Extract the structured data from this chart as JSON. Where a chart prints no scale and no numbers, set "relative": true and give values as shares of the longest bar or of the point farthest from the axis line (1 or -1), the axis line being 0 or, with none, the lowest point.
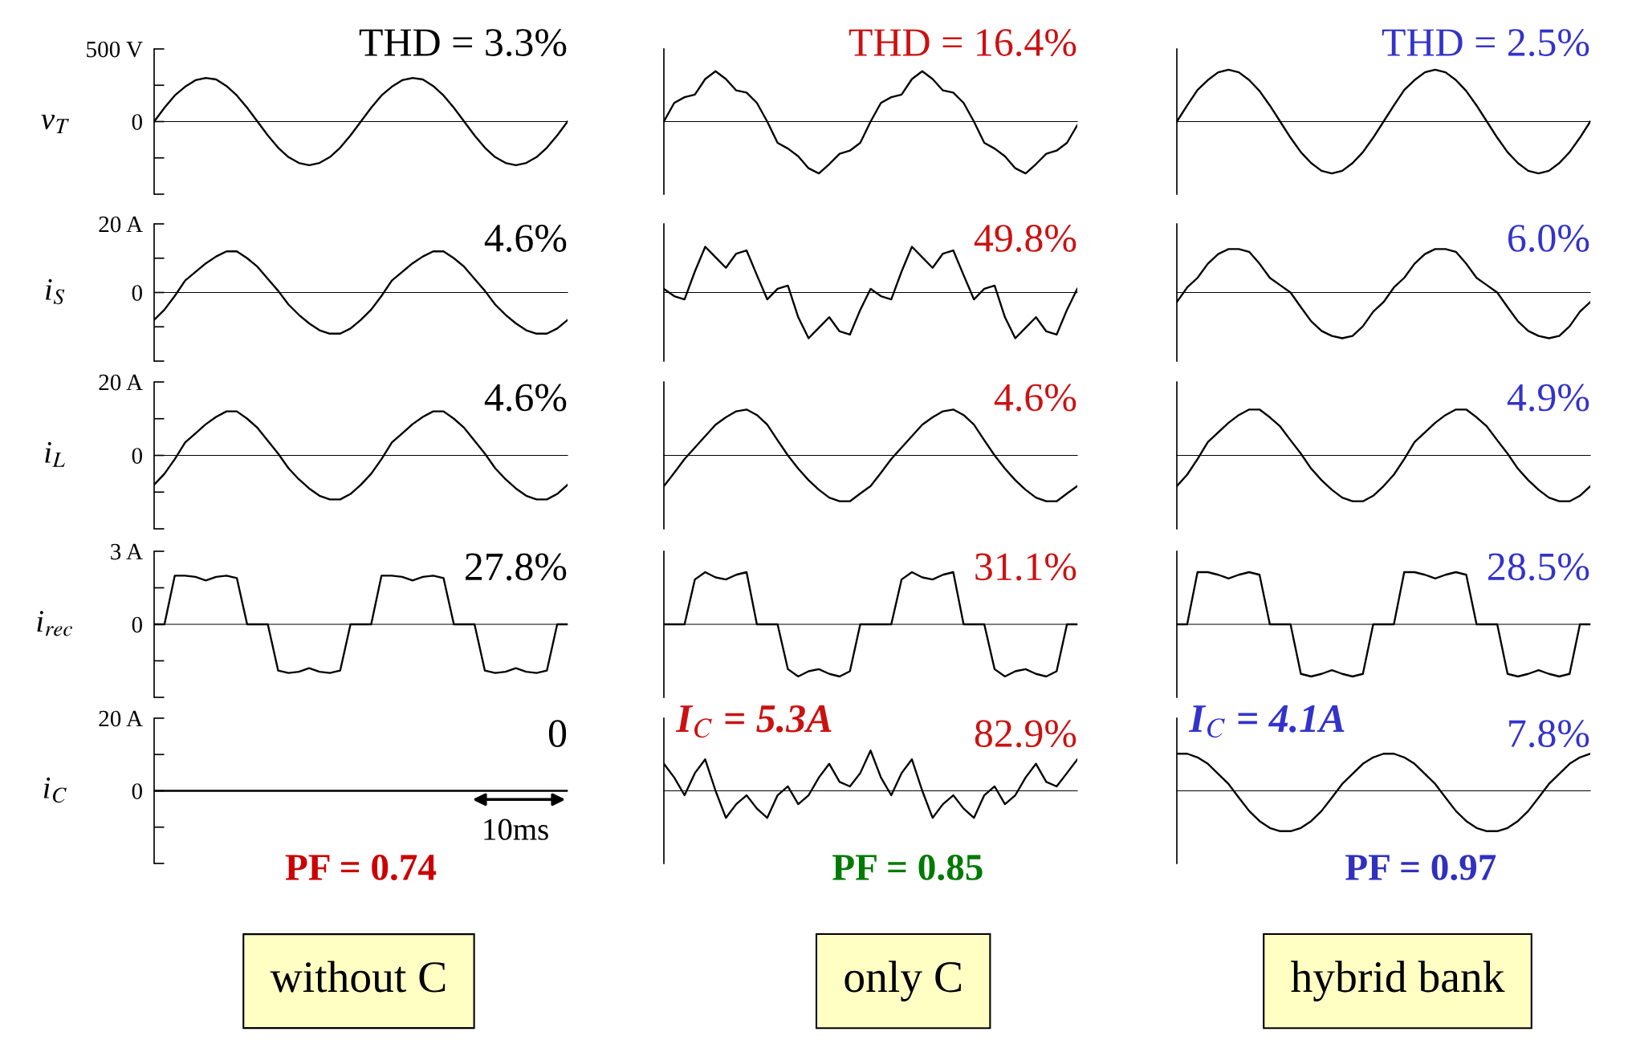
{
  "chart_data": [
    {
      "type": "line",
      "title": "THD = 3.3%",
      "ylabel": "v$_{T}$",
      "tick_labels": "y",
      "categories": [
        null,
        null,
        null,
        null,
        null,
        null,
        null,
        null,
        null,
        null,
        null,
        null,
        null,
        null,
        null,
        null,
        null,
        null,
        null,
        null,
        null,
        null,
        null,
        null,
        null,
        null,
        null,
        null,
        null,
        null,
        null,
        null,
        null,
        null,
        null,
        null,
        null,
        null,
        null,
        null,
        null
      ],
      "ylim": [
        -500,
        500
      ],
      "yticks": [
        {
          "value": 500,
          "label": "500 V"
        },
        {
          "value": 250,
          "label": null
        },
        0,
        {
          "value": -250,
          "label": null
        },
        {
          "value": -500,
          "label": null
        }
      ],
      "series": [
        {
          "color": "#000000",
          "values": [
            0,
            95,
            180,
            240,
            285,
            300,
            290,
            245,
            180,
            95,
            0,
            -95,
            -180,
            -245,
            -285,
            -300,
            -285,
            -245,
            -180,
            -95,
            0,
            95,
            180,
            240,
            285,
            300,
            290,
            245,
            180,
            95,
            0,
            -95,
            -180,
            -245,
            -285,
            -300,
            -285,
            -245,
            -180,
            -95,
            0
          ]
        }
      ]
    },
    {
      "type": "line",
      "title": "THD = 16.4%",
      "relative": true,
      "categories": [
        null,
        null,
        null,
        null,
        null,
        null,
        null,
        null,
        null,
        null,
        null,
        null,
        null,
        null,
        null,
        null,
        null,
        null,
        null,
        null,
        null,
        null,
        null,
        null,
        null,
        null,
        null,
        null,
        null,
        null,
        null,
        null,
        null,
        null,
        null,
        null,
        null,
        null,
        null,
        null,
        null
      ],
      "series": [
        {
          "color": "#000000",
          "values": [
            0,
            0.36,
            0.47,
            0.52,
            0.82,
            0.97,
            0.82,
            0.6,
            0.56,
            0.36,
            0,
            -0.41,
            -0.52,
            -0.67,
            -0.9,
            -1,
            -0.82,
            -0.62,
            -0.56,
            -0.41,
            0,
            0.36,
            0.47,
            0.52,
            0.82,
            0.97,
            0.82,
            0.6,
            0.56,
            0.36,
            0,
            -0.41,
            -0.52,
            -0.67,
            -0.9,
            -1,
            -0.82,
            -0.62,
            -0.56,
            -0.41,
            -0.07
          ]
        }
      ]
    },
    {
      "type": "line",
      "title": "THD = 2.5%",
      "relative": true,
      "categories": [
        null,
        null,
        null,
        null,
        null,
        null,
        null,
        null,
        null,
        null,
        null,
        null,
        null,
        null,
        null,
        null,
        null,
        null,
        null,
        null,
        null,
        null,
        null,
        null,
        null,
        null,
        null,
        null,
        null,
        null,
        null,
        null,
        null,
        null,
        null,
        null,
        null,
        null,
        null,
        null,
        null
      ],
      "series": [
        {
          "color": "#000000",
          "values": [
            0,
            0.31,
            0.61,
            0.8,
            0.95,
            1,
            0.95,
            0.8,
            0.59,
            0.31,
            0,
            -0.31,
            -0.59,
            -0.8,
            -0.95,
            -1,
            -0.95,
            -0.8,
            -0.59,
            -0.31,
            0,
            0.31,
            0.61,
            0.8,
            0.95,
            1,
            0.95,
            0.8,
            0.59,
            0.31,
            0,
            -0.31,
            -0.59,
            -0.8,
            -0.95,
            -1,
            -0.95,
            -0.8,
            -0.59,
            -0.31,
            0
          ]
        }
      ]
    },
    {
      "type": "line",
      "title": "4.6%",
      "ylabel": "i$_{S}$",
      "tick_labels": "y",
      "categories": [
        null,
        null,
        null,
        null,
        null,
        null,
        null,
        null,
        null,
        null,
        null,
        null,
        null,
        null,
        null,
        null,
        null,
        null,
        null,
        null,
        null,
        null,
        null,
        null,
        null,
        null,
        null,
        null,
        null,
        null,
        null,
        null,
        null,
        null,
        null,
        null,
        null,
        null,
        null,
        null,
        null
      ],
      "ylim": [
        -20,
        20
      ],
      "yticks": [
        {
          "value": 20,
          "label": "20 A"
        },
        {
          "value": 10,
          "label": null
        },
        0,
        {
          "value": -10,
          "label": null
        },
        {
          "value": -20,
          "label": null
        }
      ],
      "series": [
        {
          "color": "#000000",
          "values": [
            -8,
            -5,
            -1,
            3.5,
            6,
            8.5,
            10.5,
            12,
            12,
            10,
            7.5,
            4,
            0.5,
            -3.5,
            -6.5,
            -9,
            -11,
            -12,
            -12,
            -10.5,
            -8,
            -5,
            -1,
            3.5,
            6,
            8.5,
            10.5,
            12,
            12,
            10,
            7.5,
            4,
            0.5,
            -3.5,
            -6.5,
            -9,
            -11,
            -12,
            -12,
            -10.5,
            -8
          ]
        }
      ]
    },
    {
      "type": "line",
      "title": "49.8%",
      "relative": true,
      "categories": [
        null,
        null,
        null,
        null,
        null,
        null,
        null,
        null,
        null,
        null,
        null,
        null,
        null,
        null,
        null,
        null,
        null,
        null,
        null,
        null,
        null,
        null,
        null,
        null,
        null,
        null,
        null,
        null,
        null,
        null,
        null,
        null,
        null,
        null,
        null,
        null,
        null,
        null,
        null,
        null,
        null
      ],
      "series": [
        {
          "color": "#000000",
          "values": [
            0.08,
            -0.08,
            -0.15,
            0.46,
            1,
            0.77,
            0.54,
            0.85,
            0.92,
            0.38,
            -0.15,
            0.08,
            0.15,
            -0.54,
            -1,
            -0.77,
            -0.54,
            -0.85,
            -0.92,
            -0.38,
            0.08,
            -0.08,
            -0.15,
            0.46,
            1,
            0.77,
            0.54,
            0.85,
            0.92,
            0.38,
            -0.15,
            0.08,
            0.15,
            -0.54,
            -1,
            -0.77,
            -0.54,
            -0.85,
            -0.92,
            -0.38,
            0.08
          ]
        }
      ]
    },
    {
      "type": "line",
      "title": "6.0%",
      "relative": true,
      "categories": [
        null,
        null,
        null,
        null,
        null,
        null,
        null,
        null,
        null,
        null,
        null,
        null,
        null,
        null,
        null,
        null,
        null,
        null,
        null,
        null,
        null,
        null,
        null,
        null,
        null,
        null,
        null,
        null,
        null,
        null,
        null,
        null,
        null,
        null,
        null,
        null,
        null,
        null,
        null,
        null,
        null
      ],
      "series": [
        {
          "color": "#000000",
          "values": [
            -0.21,
            0.11,
            0.32,
            0.63,
            0.84,
            0.95,
            0.95,
            0.89,
            0.63,
            0.32,
            0.16,
            0,
            -0.32,
            -0.63,
            -0.84,
            -0.95,
            -1,
            -0.95,
            -0.74,
            -0.42,
            -0.21,
            0.11,
            0.32,
            0.63,
            0.84,
            0.95,
            0.95,
            0.89,
            0.63,
            0.32,
            0.16,
            0,
            -0.32,
            -0.63,
            -0.84,
            -0.95,
            -1,
            -0.95,
            -0.74,
            -0.42,
            -0.21
          ]
        }
      ]
    },
    {
      "type": "line",
      "title": "4.6%",
      "ylabel": "i$_{L}$",
      "tick_labels": "y",
      "categories": [
        null,
        null,
        null,
        null,
        null,
        null,
        null,
        null,
        null,
        null,
        null,
        null,
        null,
        null,
        null,
        null,
        null,
        null,
        null,
        null,
        null,
        null,
        null,
        null,
        null,
        null,
        null,
        null,
        null,
        null,
        null,
        null,
        null,
        null,
        null,
        null,
        null,
        null,
        null,
        null,
        null
      ],
      "ylim": [
        -20,
        20
      ],
      "yticks": [
        {
          "value": 20,
          "label": "20 A"
        },
        {
          "value": 10,
          "label": null
        },
        0,
        {
          "value": -10,
          "label": null
        },
        {
          "value": -20,
          "label": null
        }
      ],
      "series": [
        {
          "color": "#000000",
          "values": [
            -8,
            -5,
            -1,
            3.5,
            6,
            8.5,
            10.5,
            12,
            12,
            10,
            7.5,
            4,
            0.5,
            -3.5,
            -6.5,
            -9,
            -11,
            -12,
            -12,
            -10.5,
            -8,
            -5,
            -1,
            3.5,
            6,
            8.5,
            10.5,
            12,
            12,
            10,
            7.5,
            4,
            0.5,
            -3.5,
            -6.5,
            -9,
            -11,
            -12,
            -12,
            -10.5,
            -8
          ]
        }
      ]
    },
    {
      "type": "line",
      "title": "4.6%",
      "relative": true,
      "categories": [
        null,
        null,
        null,
        null,
        null,
        null,
        null,
        null,
        null,
        null,
        null,
        null,
        null,
        null,
        null,
        null,
        null,
        null,
        null,
        null,
        null,
        null,
        null,
        null,
        null,
        null,
        null,
        null,
        null,
        null,
        null,
        null,
        null,
        null,
        null,
        null,
        null,
        null,
        null,
        null,
        null
      ],
      "series": [
        {
          "color": "#000000",
          "values": [
            -0.67,
            -0.38,
            -0.08,
            0.17,
            0.42,
            0.67,
            0.83,
            0.96,
            1,
            0.88,
            0.67,
            0.33,
            0,
            -0.29,
            -0.54,
            -0.75,
            -0.92,
            -1,
            -1,
            -0.83,
            -0.67,
            -0.38,
            -0.08,
            0.17,
            0.42,
            0.67,
            0.83,
            0.96,
            1,
            0.88,
            0.67,
            0.33,
            0,
            -0.29,
            -0.54,
            -0.75,
            -0.92,
            -1,
            -1,
            -0.83,
            -0.67
          ]
        }
      ]
    },
    {
      "type": "line",
      "title": "4.9%",
      "relative": true,
      "categories": [
        null,
        null,
        null,
        null,
        null,
        null,
        null,
        null,
        null,
        null,
        null,
        null,
        null,
        null,
        null,
        null,
        null,
        null,
        null,
        null,
        null,
        null,
        null,
        null,
        null,
        null,
        null,
        null,
        null,
        null,
        null,
        null,
        null,
        null,
        null,
        null,
        null,
        null,
        null,
        null,
        null
      ],
      "series": [
        {
          "color": "#000000",
          "values": [
            -0.67,
            -0.42,
            -0.08,
            0.29,
            0.5,
            0.71,
            0.88,
            1,
            1,
            0.83,
            0.63,
            0.33,
            0.04,
            -0.29,
            -0.54,
            -0.75,
            -0.92,
            -1,
            -1,
            -0.88,
            -0.67,
            -0.42,
            -0.08,
            0.29,
            0.5,
            0.71,
            0.88,
            1,
            1,
            0.83,
            0.63,
            0.33,
            0.04,
            -0.29,
            -0.54,
            -0.75,
            -0.92,
            -1,
            -1,
            -0.88,
            -0.67
          ]
        }
      ]
    },
    {
      "type": "line",
      "title": "27.8%",
      "ylabel": "i$_{rec}$",
      "tick_labels": "y",
      "categories": [
        null,
        null,
        null,
        null,
        null,
        null,
        null,
        null,
        null,
        null,
        null,
        null,
        null,
        null,
        null,
        null,
        null,
        null,
        null,
        null,
        null,
        null,
        null,
        null,
        null,
        null,
        null,
        null,
        null,
        null,
        null,
        null,
        null,
        null,
        null,
        null,
        null,
        null,
        null,
        null,
        null
      ],
      "ylim": [
        -3,
        3
      ],
      "yticks": [
        {
          "value": 3,
          "label": "3 A"
        },
        {
          "value": 1.5,
          "label": null
        },
        0,
        {
          "value": -1.5,
          "label": null
        },
        {
          "value": -3,
          "label": null
        }
      ],
      "series": [
        {
          "color": "#000000",
          "values": [
            0,
            0,
            2.0,
            2.0,
            1.95,
            1.8,
            1.95,
            2.0,
            1.9,
            0,
            0,
            0,
            -1.9,
            -2.0,
            -1.95,
            -1.8,
            -1.95,
            -2.0,
            -1.9,
            0,
            0,
            0,
            2.0,
            2.0,
            1.95,
            1.8,
            1.95,
            2.0,
            1.9,
            0,
            0,
            0,
            -1.9,
            -2.0,
            -1.95,
            -1.8,
            -1.95,
            -2.0,
            -1.9,
            0,
            0
          ]
        }
      ]
    },
    {
      "type": "line",
      "title": "31.1%",
      "relative": true,
      "categories": [
        null,
        null,
        null,
        null,
        null,
        null,
        null,
        null,
        null,
        null,
        null,
        null,
        null,
        null,
        null,
        null,
        null,
        null,
        null,
        null,
        null,
        null,
        null,
        null,
        null,
        null,
        null,
        null,
        null,
        null,
        null,
        null,
        null,
        null,
        null,
        null,
        null,
        null,
        null,
        null,
        null
      ],
      "series": [
        {
          "color": "#000000",
          "values": [
            0,
            0,
            0,
            0.86,
            1,
            0.9,
            0.86,
            0.95,
            1,
            0,
            0,
            0,
            -0.86,
            -1,
            -0.9,
            -0.86,
            -0.95,
            -1,
            -0.9,
            0,
            0,
            0,
            0,
            0.86,
            1,
            0.9,
            0.86,
            0.95,
            1,
            0,
            0,
            0,
            -0.86,
            -1,
            -0.9,
            -0.86,
            -0.95,
            -1,
            -0.9,
            0,
            0
          ]
        }
      ]
    },
    {
      "type": "line",
      "title": "28.5%",
      "relative": true,
      "categories": [
        null,
        null,
        null,
        null,
        null,
        null,
        null,
        null,
        null,
        null,
        null,
        null,
        null,
        null,
        null,
        null,
        null,
        null,
        null,
        null,
        null,
        null,
        null,
        null,
        null,
        null,
        null,
        null,
        null,
        null,
        null,
        null,
        null,
        null,
        null,
        null,
        null,
        null,
        null,
        null,
        null
      ],
      "series": [
        {
          "color": "#000000",
          "values": [
            0,
            0,
            1,
            1,
            0.95,
            0.88,
            0.95,
            1,
            0.95,
            0,
            0,
            0,
            -0.95,
            -1,
            -0.95,
            -0.88,
            -0.95,
            -1,
            -0.95,
            0,
            0,
            0,
            1,
            1,
            0.95,
            0.88,
            0.95,
            1,
            0.95,
            0,
            0,
            0,
            -0.95,
            -1,
            -0.95,
            -0.88,
            -0.95,
            -1,
            -0.95,
            0,
            0
          ]
        }
      ]
    },
    {
      "type": "line",
      "title": "0",
      "ylabel": "i$_{C}$",
      "tick_labels": "y",
      "categories": [
        null,
        null,
        null,
        null,
        null,
        null,
        null,
        null,
        null,
        null,
        null,
        null,
        null,
        null,
        null,
        null,
        null,
        null,
        null,
        null,
        null,
        null,
        null,
        null,
        null,
        null,
        null,
        null,
        null,
        null,
        null,
        null,
        null,
        null,
        null,
        null,
        null,
        null,
        null,
        null,
        null
      ],
      "ylim": [
        -20,
        20
      ],
      "yticks": [
        {
          "value": 20,
          "label": "20 A"
        },
        {
          "value": 10,
          "label": null
        },
        0,
        {
          "value": -10,
          "label": null
        },
        {
          "value": -20,
          "label": null
        }
      ],
      "annotations": [
        "10ms",
        "PF = 0.74",
        "without C"
      ],
      "series": [
        {
          "color": "#000000",
          "values": [
            0,
            0,
            0,
            0,
            0,
            0,
            0,
            0,
            0,
            0,
            0,
            0,
            0,
            0,
            0,
            0,
            0,
            0,
            0,
            0,
            0,
            0,
            0,
            0,
            0,
            0,
            0,
            0,
            0,
            0,
            0,
            0,
            0,
            0,
            0,
            0,
            0,
            0,
            0,
            0,
            0
          ]
        }
      ]
    },
    {
      "type": "line",
      "title": "82.9%",
      "relative": true,
      "categories": [
        null,
        null,
        null,
        null,
        null,
        null,
        null,
        null,
        null,
        null,
        null,
        null,
        null,
        null,
        null,
        null,
        null,
        null,
        null,
        null,
        null,
        null,
        null,
        null,
        null,
        null,
        null,
        null,
        null,
        null,
        null,
        null,
        null,
        null,
        null,
        null,
        null,
        null,
        null,
        null,
        null
      ],
      "annotations": [
        "I$_{C}$ = 5.3A",
        "PF = 0.85",
        "only C"
      ],
      "series": [
        {
          "color": "#000000",
          "values": [
            0.67,
            0.33,
            -0.11,
            0.44,
            0.78,
            0,
            -0.67,
            -0.33,
            -0.11,
            -0.44,
            -0.67,
            -0.11,
            0.11,
            -0.33,
            -0.11,
            0.33,
            0.67,
            0.22,
            0.11,
            0.44,
            1,
            0.33,
            -0.11,
            0.44,
            0.78,
            0,
            -0.67,
            -0.33,
            -0.11,
            -0.44,
            -0.67,
            -0.11,
            0.11,
            -0.33,
            -0.11,
            0.33,
            0.67,
            0.22,
            0.11,
            0.44,
            0.78
          ]
        }
      ]
    },
    {
      "type": "line",
      "title": "7.8%",
      "relative": true,
      "categories": [
        null,
        null,
        null,
        null,
        null,
        null,
        null,
        null,
        null,
        null,
        null,
        null,
        null,
        null,
        null,
        null,
        null,
        null,
        null,
        null,
        null,
        null,
        null,
        null,
        null,
        null,
        null,
        null,
        null,
        null,
        null,
        null,
        null,
        null,
        null,
        null,
        null,
        null,
        null,
        null,
        null
      ],
      "annotations": [
        "I$_{C}$ = 4.1A",
        "PF = 0.97",
        "hybrid bank"
      ],
      "series": [
        {
          "color": "#000000",
          "values": [
            0.92,
            0.92,
            0.83,
            0.67,
            0.42,
            0.17,
            -0.17,
            -0.5,
            -0.75,
            -0.92,
            -1,
            -1,
            -0.92,
            -0.75,
            -0.5,
            -0.17,
            0.17,
            0.42,
            0.67,
            0.83,
            0.92,
            0.92,
            0.83,
            0.67,
            0.42,
            0.17,
            -0.17,
            -0.5,
            -0.75,
            -0.92,
            -1,
            -1,
            -0.92,
            -0.75,
            -0.5,
            -0.17,
            0.17,
            0.42,
            0.67,
            0.83,
            0.92
          ]
        }
      ]
    }
  ]
}
